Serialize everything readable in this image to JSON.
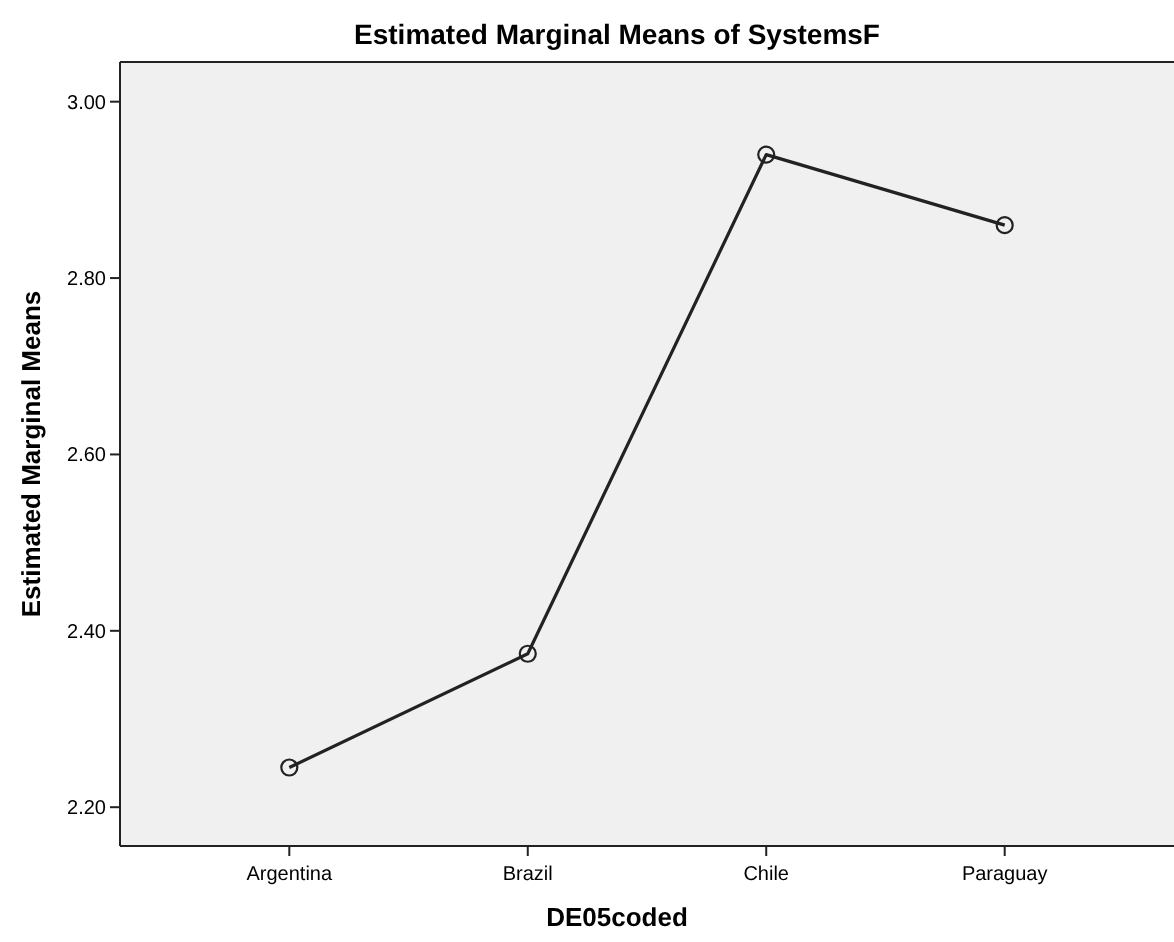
{
  "chart_data": {
    "type": "line",
    "title": "Estimated Marginal Means of SystemsF",
    "xlabel": "DE05coded",
    "ylabel": "Estimated Marginal Means",
    "categories": [
      "Argentina",
      "Brazil",
      "Chile",
      "Paraguay"
    ],
    "series": [
      {
        "color": "#222222",
        "values": [
          2.245,
          2.374,
          2.94,
          2.86
        ]
      }
    ],
    "ylim": [
      2.156,
      3.045
    ],
    "yticks": [
      {
        "value": 2.2,
        "label": "2.20"
      },
      {
        "value": 2.4,
        "label": "2.40"
      },
      {
        "value": 2.6,
        "label": "2.60"
      },
      {
        "value": 2.8,
        "label": "2.80"
      },
      {
        "value": 3.0,
        "label": "3.00"
      }
    ],
    "marker": "circle",
    "line_style": "solid"
  }
}
